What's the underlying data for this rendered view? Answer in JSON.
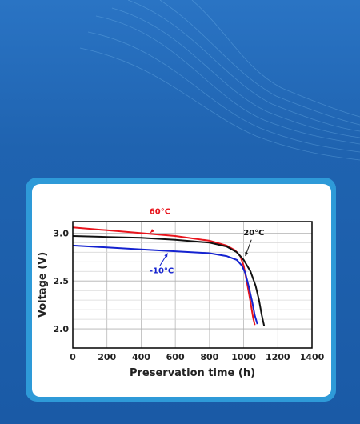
{
  "chart_data": {
    "type": "line",
    "xlabel": "Preservation time (h)",
    "ylabel": "Voltage (V)",
    "xlim": [
      0,
      1400
    ],
    "ylim": [
      1.8,
      3.12
    ],
    "xticks": [
      "0",
      "200",
      "400",
      "600",
      "800",
      "1000",
      "1200",
      "1400"
    ],
    "xtick_values": [
      0,
      200,
      400,
      600,
      800,
      1000,
      1200,
      1400
    ],
    "yticks": [
      "2.0",
      "2.5",
      "3.0"
    ],
    "ytick_values": [
      2.0,
      2.5,
      3.0
    ],
    "grid": true,
    "series": [
      {
        "name": "60°C",
        "color": "#e8141c",
        "x": [
          0,
          200,
          400,
          600,
          800,
          900,
          950,
          980,
          1000,
          1020,
          1040,
          1055,
          1065
        ],
        "y": [
          3.06,
          3.03,
          3.0,
          2.97,
          2.92,
          2.87,
          2.82,
          2.76,
          2.66,
          2.48,
          2.28,
          2.12,
          2.04
        ]
      },
      {
        "name": "20°C",
        "color": "#111111",
        "x": [
          0,
          200,
          400,
          600,
          800,
          900,
          960,
          1000,
          1040,
          1070,
          1090,
          1105,
          1120
        ],
        "y": [
          2.97,
          2.96,
          2.95,
          2.93,
          2.9,
          2.86,
          2.8,
          2.72,
          2.6,
          2.45,
          2.3,
          2.15,
          2.03
        ]
      },
      {
        "name": "-10°C",
        "color": "#1422d0",
        "x": [
          0,
          200,
          400,
          600,
          800,
          900,
          960,
          990,
          1010,
          1030,
          1050,
          1065,
          1080
        ],
        "y": [
          2.87,
          2.85,
          2.83,
          2.81,
          2.79,
          2.76,
          2.72,
          2.66,
          2.58,
          2.44,
          2.28,
          2.14,
          2.05
        ]
      }
    ],
    "annotations": [
      {
        "text": "60°C",
        "color": "#e8141c",
        "x": 510,
        "y": 3.2,
        "ax": 470,
        "ay": 3.03,
        "tx": 455,
        "ty": 3.005
      },
      {
        "text": "20°C",
        "color": "#111111",
        "x": 1060,
        "y": 2.98,
        "ax": 1045,
        "ay": 2.93,
        "tx": 1010,
        "ty": 2.76
      },
      {
        "text": "-10°C",
        "color": "#1422d0",
        "x": 520,
        "y": 2.58,
        "ax": 510,
        "ay": 2.66,
        "tx": 555,
        "ty": 2.79
      }
    ]
  }
}
